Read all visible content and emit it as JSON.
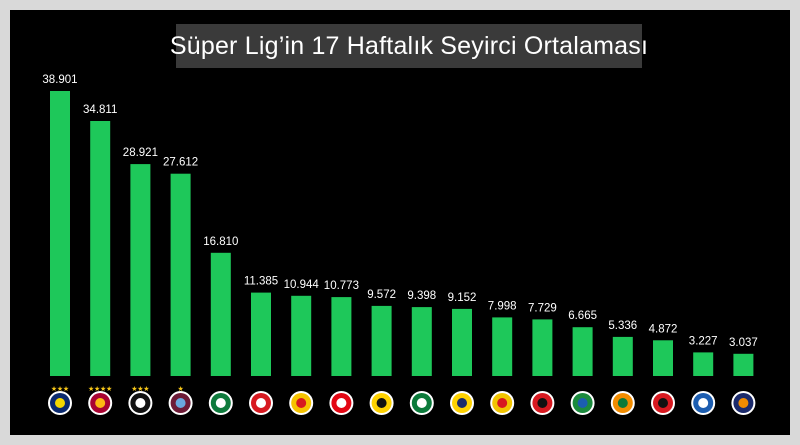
{
  "chart_data": {
    "type": "bar",
    "title": "Süper Lig’in 17 Haftalık Seyirci Ortalaması",
    "xlabel": "",
    "ylabel": "",
    "ylim": [
      0,
      40000
    ],
    "grid": false,
    "categories": [
      "fenerbahce-logo",
      "galatasaray-logo",
      "besiktas-logo",
      "trabzonspor-logo",
      "konyaspor-logo",
      "sivasspor-logo",
      "kayserispor-logo",
      "antalyaspor-logo",
      "malatyaspor-logo",
      "denizlispor-logo",
      "ankaragucu-logo",
      "goztepe-logo",
      "gaziantep-logo",
      "rizespor-logo",
      "alanyaspor-logo",
      "genclerbirligi-logo",
      "kasimpasa-logo",
      "basaksehir-logo"
    ],
    "values": [
      38901,
      34811,
      28921,
      27612,
      16810,
      11385,
      10944,
      10773,
      9572,
      9398,
      9152,
      7998,
      7729,
      6665,
      5336,
      4872,
      3227,
      3037
    ],
    "value_labels": [
      "38.901",
      "34.811",
      "28.921",
      "27.612",
      "16.810",
      "11.385",
      "10.944",
      "10.773",
      "9.572",
      "9.398",
      "9.152",
      "7.998",
      "7.729",
      "6.665",
      "5.336",
      "4.872",
      "3.227",
      "3.037"
    ],
    "bar_color": "#1ec85a",
    "logos": [
      {
        "name": "fenerbahce-logo",
        "colors": [
          "#0b2a6f",
          "#f5d800"
        ],
        "stars": 3
      },
      {
        "name": "galatasaray-logo",
        "colors": [
          "#a90432",
          "#fdb913"
        ],
        "stars": 4
      },
      {
        "name": "besiktas-logo",
        "colors": [
          "#111111",
          "#ffffff"
        ],
        "stars": 3
      },
      {
        "name": "trabzonspor-logo",
        "colors": [
          "#6d1a36",
          "#6aa7dd"
        ],
        "stars": 1
      },
      {
        "name": "konyaspor-logo",
        "colors": [
          "#0e7a3c",
          "#ffffff"
        ],
        "stars": 0
      },
      {
        "name": "sivasspor-logo",
        "colors": [
          "#d71920",
          "#ffffff"
        ],
        "stars": 0
      },
      {
        "name": "kayserispor-logo",
        "colors": [
          "#f6c300",
          "#d71920"
        ],
        "stars": 0
      },
      {
        "name": "antalyaspor-logo",
        "colors": [
          "#e30613",
          "#ffffff"
        ],
        "stars": 0
      },
      {
        "name": "malatyaspor-logo",
        "colors": [
          "#ffd200",
          "#111111"
        ],
        "stars": 0
      },
      {
        "name": "denizlispor-logo",
        "colors": [
          "#0b7a3a",
          "#ffffff"
        ],
        "stars": 0
      },
      {
        "name": "ankaragucu-logo",
        "colors": [
          "#ffd200",
          "#1b2a6b"
        ],
        "stars": 0
      },
      {
        "name": "goztepe-logo",
        "colors": [
          "#f2c500",
          "#d71920"
        ],
        "stars": 0
      },
      {
        "name": "gaziantep-logo",
        "colors": [
          "#d71920",
          "#111111"
        ],
        "stars": 0
      },
      {
        "name": "rizespor-logo",
        "colors": [
          "#1b8a3d",
          "#1c5db0"
        ],
        "stars": 0
      },
      {
        "name": "alanyaspor-logo",
        "colors": [
          "#f28c00",
          "#0b7a3a"
        ],
        "stars": 0
      },
      {
        "name": "genclerbirligi-logo",
        "colors": [
          "#d71920",
          "#111111"
        ],
        "stars": 0
      },
      {
        "name": "kasimpasa-logo",
        "colors": [
          "#1c5db0",
          "#ffffff"
        ],
        "stars": 0
      },
      {
        "name": "basaksehir-logo",
        "colors": [
          "#1b2a6b",
          "#f28c00"
        ],
        "stars": 0
      }
    ]
  }
}
